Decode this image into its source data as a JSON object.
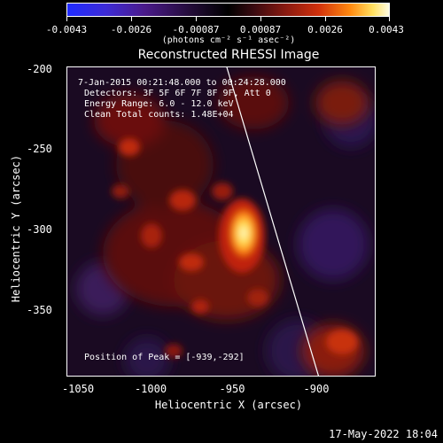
{
  "colorbar": {
    "tick_labels": [
      "-0.0043",
      "-0.0026",
      "-0.00087",
      "0.00087",
      "0.0026",
      "0.0043"
    ],
    "units": "(photons cm⁻² s⁻¹ asec⁻²)"
  },
  "title": "Reconstructed RHESSI Image",
  "info": {
    "time_range": "7-Jan-2015 00:21:48.000 to 00:24:28.000",
    "detectors": "Detectors: 3F 5F 6F 7F 8F 9F, Att 0",
    "energy": "Energy Range: 6.0 - 12.0 keV",
    "clean": "Clean     Total counts: 1.48E+04",
    "peak": "Position of Peak = [-939,-292]"
  },
  "axes": {
    "xlabel": "Heliocentric X (arcsec)",
    "ylabel": "Heliocentric Y (arcsec)",
    "x_ticks": [
      "-1050",
      "-1000",
      "-950",
      "-900"
    ],
    "y_ticks": [
      "-200",
      "-250",
      "-300",
      "-350"
    ],
    "xlim": [
      -1060,
      -882
    ],
    "ylim": [
      -392,
      -196
    ]
  },
  "footer": {
    "date": "17-May-2022 18:04"
  },
  "colors": {
    "limb_line": "#ffffff",
    "background": "#000000"
  }
}
